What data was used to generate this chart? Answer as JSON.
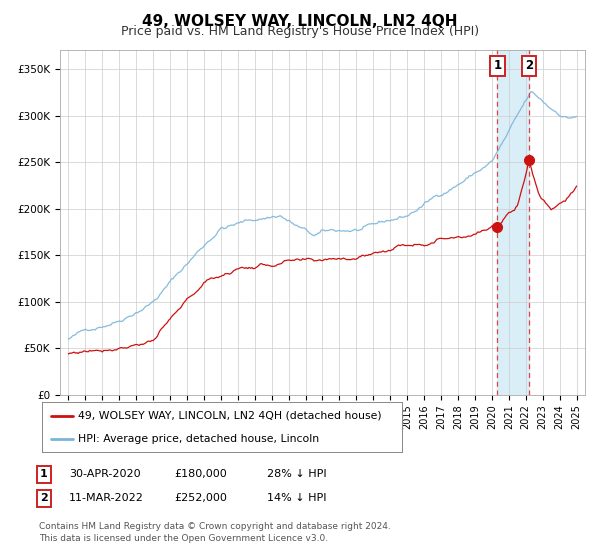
{
  "title": "49, WOLSEY WAY, LINCOLN, LN2 4QH",
  "subtitle": "Price paid vs. HM Land Registry's House Price Index (HPI)",
  "ylabel_ticks": [
    "£0",
    "£50K",
    "£100K",
    "£150K",
    "£200K",
    "£250K",
    "£300K",
    "£350K"
  ],
  "ytick_values": [
    0,
    50000,
    100000,
    150000,
    200000,
    250000,
    300000,
    350000
  ],
  "ylim": [
    0,
    370000
  ],
  "xlim_start": 1994.5,
  "xlim_end": 2025.5,
  "hpi_color": "#7ab4d8",
  "price_color": "#cc1111",
  "marker1_date": 2020.33,
  "marker1_price": 180000,
  "marker2_date": 2022.19,
  "marker2_price": 252000,
  "vline_color": "#dd4444",
  "highlight_color": "#daeef8",
  "legend_label1": "49, WOLSEY WAY, LINCOLN, LN2 4QH (detached house)",
  "legend_label2": "HPI: Average price, detached house, Lincoln",
  "table_row1": [
    "1",
    "30-APR-2020",
    "£180,000",
    "28% ↓ HPI"
  ],
  "table_row2": [
    "2",
    "11-MAR-2022",
    "£252,000",
    "14% ↓ HPI"
  ],
  "footnote": "Contains HM Land Registry data © Crown copyright and database right 2024.\nThis data is licensed under the Open Government Licence v3.0.",
  "background_color": "#ffffff",
  "grid_color": "#cccccc",
  "title_fontsize": 11,
  "subtitle_fontsize": 9,
  "tick_fontsize": 7.5
}
